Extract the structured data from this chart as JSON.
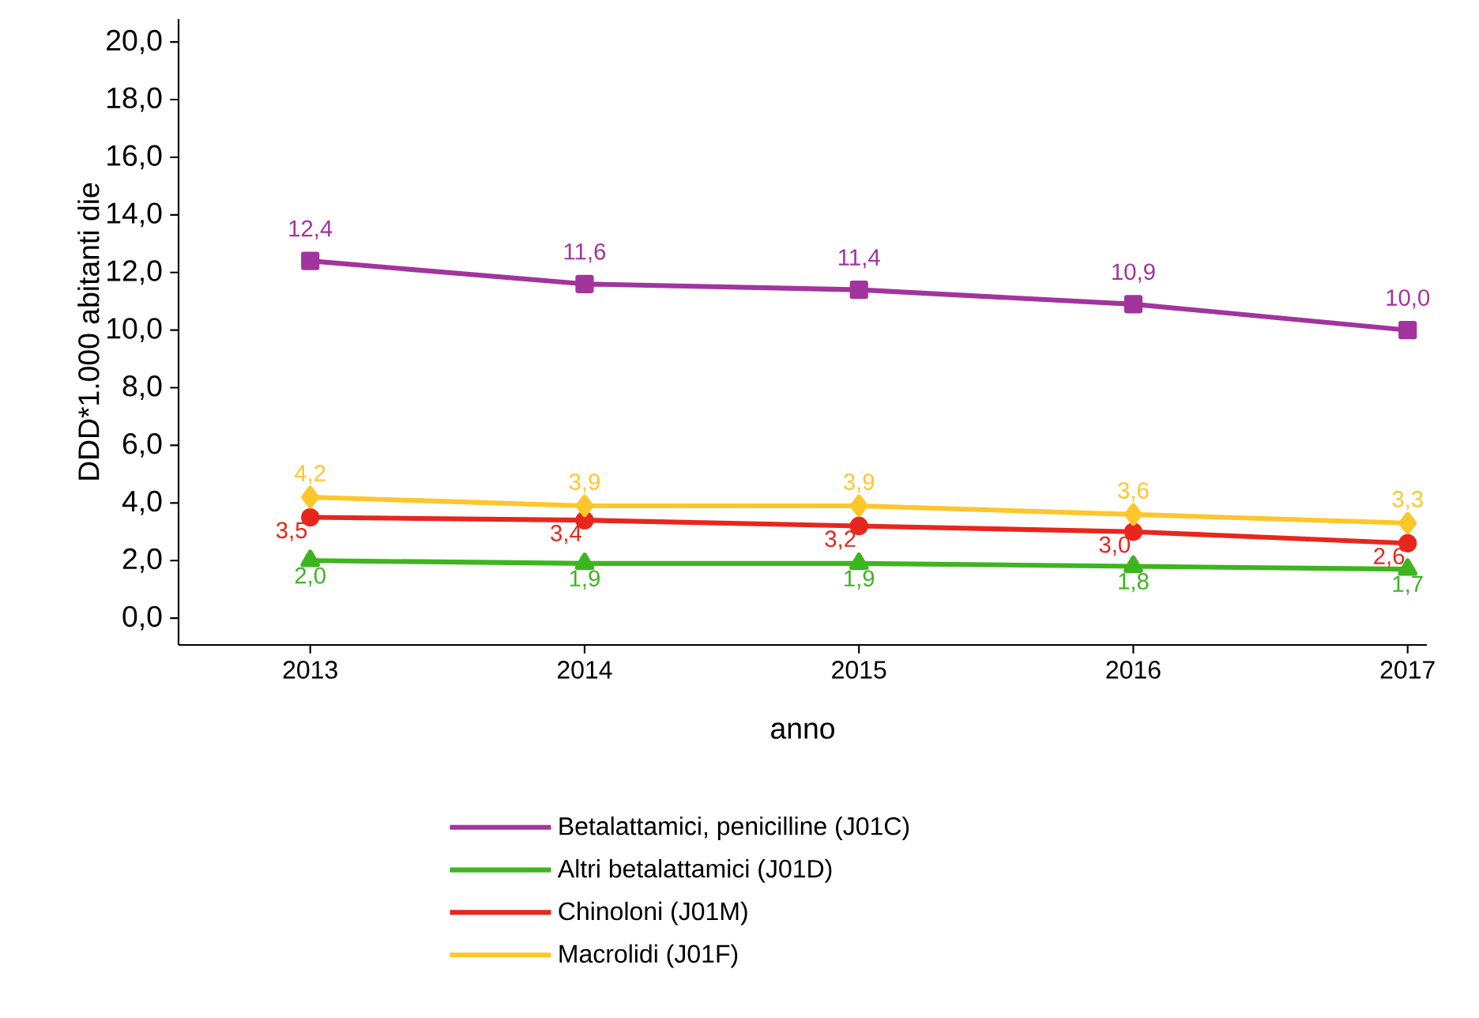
{
  "chart_data": {
    "type": "line",
    "xlabel": "anno",
    "ylabel": "DDD*1.000 abitanti die",
    "x": [
      2013,
      2014,
      2015,
      2016,
      2017
    ],
    "xlim": [
      2012.52,
      2017.07
    ],
    "xticks": [
      2013,
      2014,
      2015,
      2016,
      2017
    ],
    "ylim": [
      -0.93,
      20.8
    ],
    "yticks": [
      {
        "value": 0,
        "label": "0,0"
      },
      {
        "value": 2,
        "label": "2,0"
      },
      {
        "value": 4,
        "label": "4,0"
      },
      {
        "value": 6,
        "label": "6,0"
      },
      {
        "value": 8,
        "label": "8,0"
      },
      {
        "value": 10,
        "label": "10,0"
      },
      {
        "value": 12,
        "label": "12,0"
      },
      {
        "value": 14,
        "label": "14,0"
      },
      {
        "value": 16,
        "label": "16,0"
      },
      {
        "value": 18,
        "label": "18,0"
      },
      {
        "value": 20,
        "label": "20,0"
      }
    ],
    "grid": false,
    "legend": "bottom",
    "series": [
      {
        "name": "Betalattamici, penicilline (J01C)",
        "color": "#a2349e",
        "marker": "square",
        "values": [
          12.4,
          11.6,
          11.4,
          10.9,
          10.0
        ],
        "value_labels": [
          "12,4",
          "11,6",
          "11,4",
          "10,9",
          "10,0"
        ]
      },
      {
        "name": "Altri betalattamici (J01D)",
        "color": "#3db51f",
        "marker": "triangle",
        "values": [
          2.0,
          1.9,
          1.9,
          1.8,
          1.7
        ],
        "value_labels": [
          "2,0",
          "1,9",
          "1,9",
          "1,8",
          "1,7"
        ]
      },
      {
        "name": "Chinoloni (J01M)",
        "color": "#e8261d",
        "marker": "circle",
        "values": [
          3.5,
          3.4,
          3.2,
          3.0,
          2.6
        ],
        "value_labels": [
          "3,5",
          "3,4",
          "3,2",
          "3,0",
          "2,6"
        ]
      },
      {
        "name": "Macrolidi (J01F)",
        "color": "#fdc62b",
        "marker": "diamond",
        "values": [
          4.2,
          3.9,
          3.9,
          3.6,
          3.3
        ],
        "value_labels": [
          "4,2",
          "3,9",
          "3,9",
          "3,6",
          "3,3"
        ]
      }
    ]
  }
}
